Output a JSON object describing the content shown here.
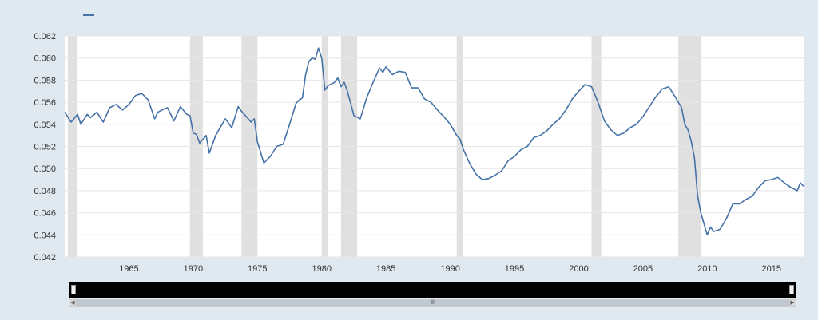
{
  "colors": {
    "series": "#4572a7",
    "recession": "#e0e0e0",
    "background": "#e1e9f0",
    "plot": "#ffffff",
    "grid": "#e6e6e6"
  },
  "icons": {
    "scroll_left": "triangle-left-icon",
    "scroll_right": "triangle-right-icon",
    "scroll_grip": "grip-lines-icon"
  },
  "chart_data": {
    "type": "line",
    "title": "",
    "xlabel": "",
    "ylabel": "",
    "legend": "top-left",
    "grid": true,
    "xlim": [
      1960.0,
      2017.5
    ],
    "ylim": [
      0.042,
      0.062
    ],
    "xticks": [
      1965,
      1970,
      1975,
      1980,
      1985,
      1990,
      1995,
      2000,
      2005,
      2010,
      2015
    ],
    "yticks": [
      "0.042",
      "0.044",
      "0.046",
      "0.048",
      "0.050",
      "0.052",
      "0.054",
      "0.056",
      "0.058",
      "0.060",
      "0.062"
    ],
    "recessions": [
      [
        1960.25,
        1961.0
      ],
      [
        1969.75,
        1970.75
      ],
      [
        1973.75,
        1975.0
      ],
      [
        1980.0,
        1980.5
      ],
      [
        1981.5,
        1982.75
      ],
      [
        1990.5,
        1991.0
      ],
      [
        2001.0,
        2001.75
      ],
      [
        2007.75,
        2009.5
      ]
    ],
    "series": [
      {
        "name": "",
        "x": [
          1960.0,
          1960.5,
          1961.0,
          1961.25,
          1961.75,
          1962.0,
          1962.5,
          1963.0,
          1963.5,
          1964.0,
          1964.5,
          1965.0,
          1965.5,
          1966.0,
          1966.5,
          1967.0,
          1967.25,
          1967.75,
          1968.0,
          1968.5,
          1969.0,
          1969.5,
          1969.75,
          1970.0,
          1970.25,
          1970.5,
          1971.0,
          1971.25,
          1971.75,
          1972.0,
          1972.5,
          1973.0,
          1973.5,
          1973.75,
          1974.5,
          1974.75,
          1975.0,
          1975.5,
          1976.0,
          1976.5,
          1977.0,
          1977.5,
          1978.0,
          1978.25,
          1978.5,
          1978.75,
          1979.0,
          1979.25,
          1979.5,
          1979.75,
          1980.0,
          1980.25,
          1980.5,
          1981.0,
          1981.25,
          1981.5,
          1981.75,
          1982.0,
          1982.5,
          1983.0,
          1983.5,
          1984.0,
          1984.5,
          1984.75,
          1985.0,
          1985.5,
          1986.0,
          1986.5,
          1987.0,
          1987.5,
          1988.0,
          1988.5,
          1989.0,
          1989.5,
          1990.0,
          1990.5,
          1990.75,
          1991.0,
          1991.5,
          1992.0,
          1992.5,
          1993.0,
          1993.5,
          1994.0,
          1994.5,
          1995.0,
          1995.5,
          1996.0,
          1996.5,
          1997.0,
          1997.5,
          1998.0,
          1998.5,
          1999.0,
          1999.5,
          2000.0,
          2000.5,
          2001.0,
          2001.5,
          2002.0,
          2002.5,
          2003.0,
          2003.5,
          2004.0,
          2004.5,
          2005.0,
          2005.5,
          2006.0,
          2006.5,
          2007.0,
          2007.5,
          2008.0,
          2008.25,
          2008.5,
          2008.75,
          2009.0,
          2009.25,
          2009.5,
          2009.75,
          2010.0,
          2010.25,
          2010.5,
          2011.0,
          2011.5,
          2012.0,
          2012.5,
          2013.0,
          2013.5,
          2014.0,
          2014.5,
          2015.0,
          2015.5,
          2016.0,
          2016.5,
          2017.0,
          2017.25,
          2017.5
        ],
        "values": [
          0.0551,
          0.0542,
          0.0549,
          0.054,
          0.0549,
          0.0546,
          0.0551,
          0.0542,
          0.0555,
          0.0558,
          0.0553,
          0.0558,
          0.0566,
          0.0568,
          0.0562,
          0.0545,
          0.0551,
          0.0554,
          0.0555,
          0.0543,
          0.0556,
          0.0549,
          0.0548,
          0.0532,
          0.0531,
          0.0523,
          0.053,
          0.0514,
          0.053,
          0.0535,
          0.0545,
          0.0537,
          0.0556,
          0.0552,
          0.0542,
          0.0545,
          0.0524,
          0.0505,
          0.0511,
          0.052,
          0.0522,
          0.054,
          0.0559,
          0.0562,
          0.0564,
          0.0585,
          0.0597,
          0.06,
          0.0599,
          0.0609,
          0.06,
          0.0571,
          0.0575,
          0.0578,
          0.0582,
          0.0574,
          0.0578,
          0.057,
          0.0548,
          0.0545,
          0.0564,
          0.0578,
          0.0591,
          0.0587,
          0.0592,
          0.0585,
          0.0588,
          0.0587,
          0.0573,
          0.0573,
          0.0563,
          0.056,
          0.0553,
          0.0547,
          0.054,
          0.053,
          0.0527,
          0.0518,
          0.0505,
          0.0495,
          0.049,
          0.0491,
          0.0494,
          0.0498,
          0.0507,
          0.0511,
          0.0517,
          0.052,
          0.0528,
          0.053,
          0.0534,
          0.054,
          0.0545,
          0.0553,
          0.0563,
          0.057,
          0.0576,
          0.0574,
          0.056,
          0.0543,
          0.0535,
          0.053,
          0.0532,
          0.0537,
          0.054,
          0.0547,
          0.0556,
          0.0565,
          0.0572,
          0.0574,
          0.0565,
          0.0555,
          0.054,
          0.0535,
          0.0525,
          0.051,
          0.0475,
          0.046,
          0.045,
          0.044,
          0.0447,
          0.0443,
          0.0445,
          0.0455,
          0.0468,
          0.0468,
          0.0472,
          0.0475,
          0.0483,
          0.0489,
          0.049,
          0.0492,
          0.0487,
          0.0483,
          0.048,
          0.0487,
          0.0484
        ]
      }
    ]
  }
}
